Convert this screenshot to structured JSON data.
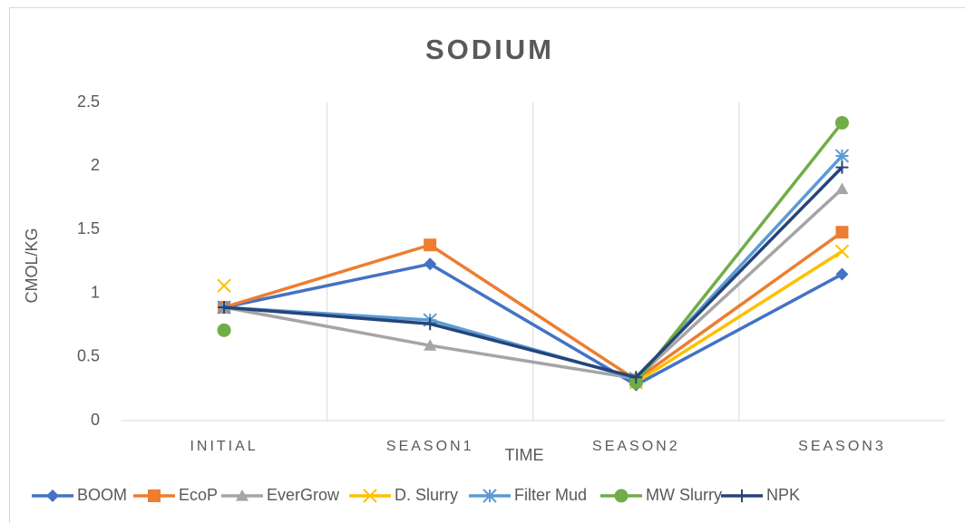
{
  "chart_data": {
    "type": "line",
    "title": "SODIUM",
    "x_label": "TIME",
    "y_label": "CMOL/KG",
    "categories": [
      "INITIAL",
      "SEASON1",
      "SEASON2",
      "SEASON3"
    ],
    "ylim": [
      0,
      2.5
    ],
    "yticks": [
      0,
      0.5,
      1,
      1.5,
      2,
      2.5
    ],
    "vertical_grid": true,
    "legend": "bottom",
    "series": [
      {
        "name": "BOOM",
        "color": "#4472c4",
        "marker": "diamond",
        "values": [
          0.89,
          1.23,
          0.28,
          1.15
        ]
      },
      {
        "name": "EcoP",
        "color": "#ed7d31",
        "marker": "square",
        "values": [
          0.89,
          1.38,
          0.32,
          1.48
        ]
      },
      {
        "name": "EverGrow",
        "color": "#a5a5a5",
        "marker": "triangle",
        "values": [
          0.89,
          0.59,
          0.33,
          1.82
        ]
      },
      {
        "name": "D. Slurry",
        "color": "#ffc000",
        "marker": "x",
        "values": [
          1.06,
          null,
          0.3,
          1.33
        ]
      },
      {
        "name": "Filter Mud",
        "color": "#5b9bd5",
        "marker": "asterisk",
        "values": [
          0.89,
          0.79,
          0.33,
          2.08
        ]
      },
      {
        "name": "MW Slurry",
        "color": "#70ad47",
        "marker": "circle",
        "values": [
          0.71,
          null,
          0.3,
          2.34
        ]
      },
      {
        "name": "NPK",
        "color": "#264478",
        "marker": "plus",
        "values": [
          0.89,
          0.76,
          0.34,
          1.99
        ]
      }
    ]
  }
}
